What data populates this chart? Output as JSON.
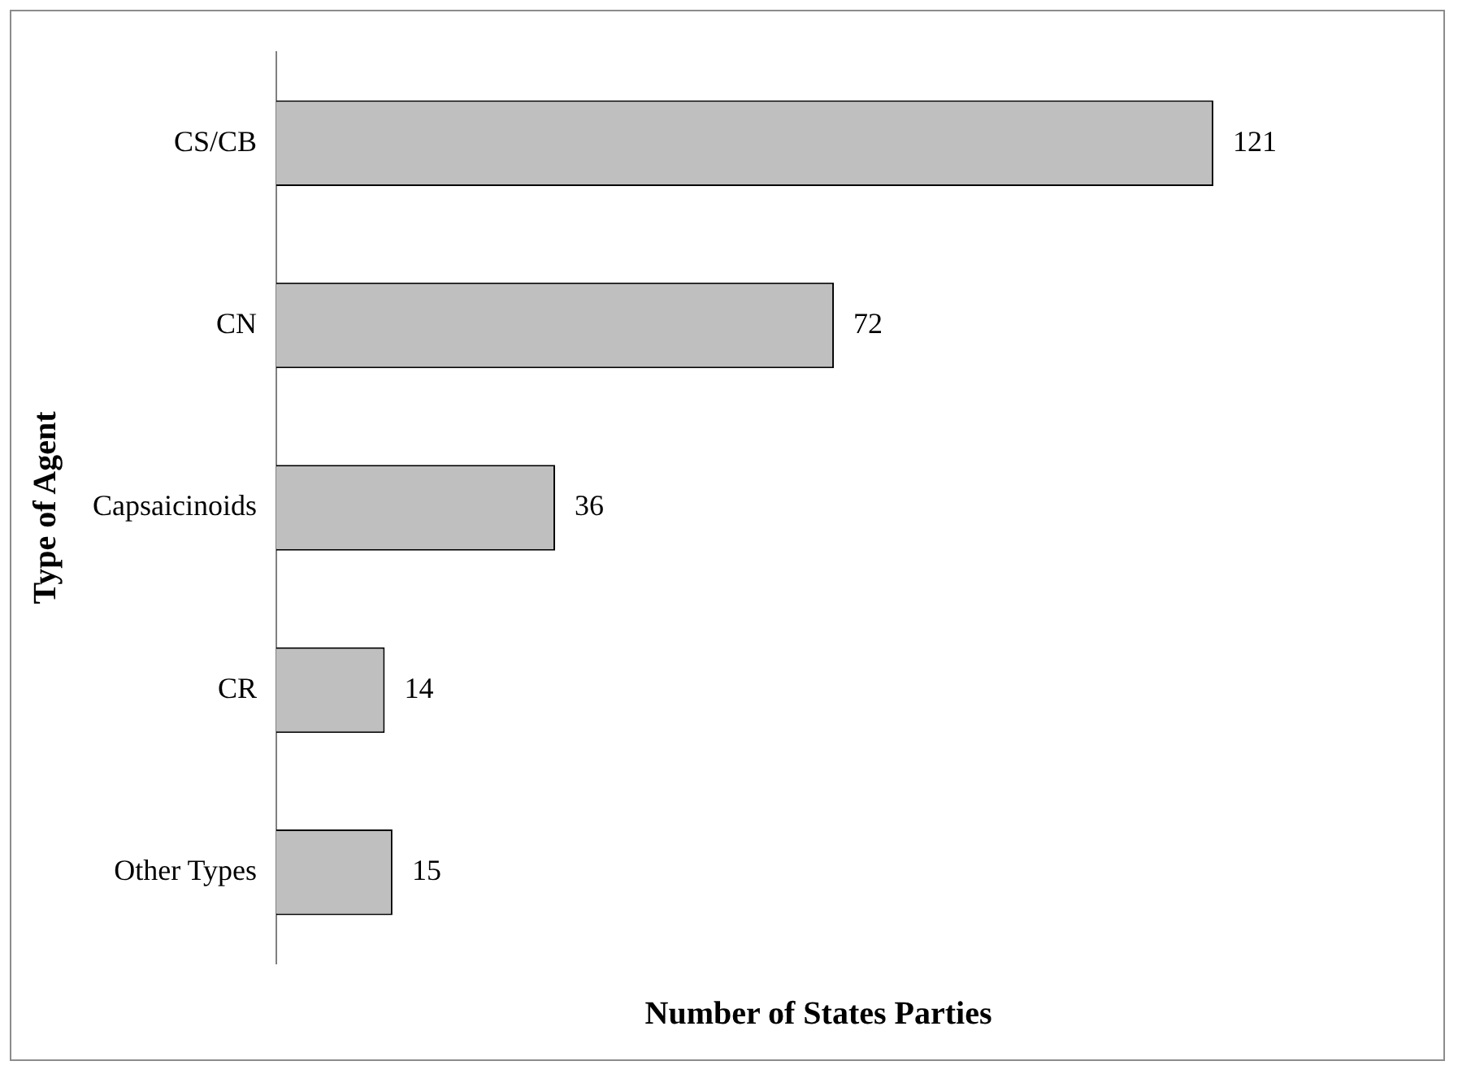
{
  "chart_data": {
    "type": "bar",
    "orientation": "horizontal",
    "xlabel": "Number of States Parties",
    "ylabel": "Type of Agent",
    "categories": [
      "CS/CB",
      "CN",
      "Capsaicinoids",
      "CR",
      "Other Types"
    ],
    "values": [
      121,
      72,
      36,
      14,
      15
    ],
    "color": "#bfbfbf",
    "data_labels": true,
    "grid": false,
    "legend": false,
    "tick_labels": "y"
  }
}
